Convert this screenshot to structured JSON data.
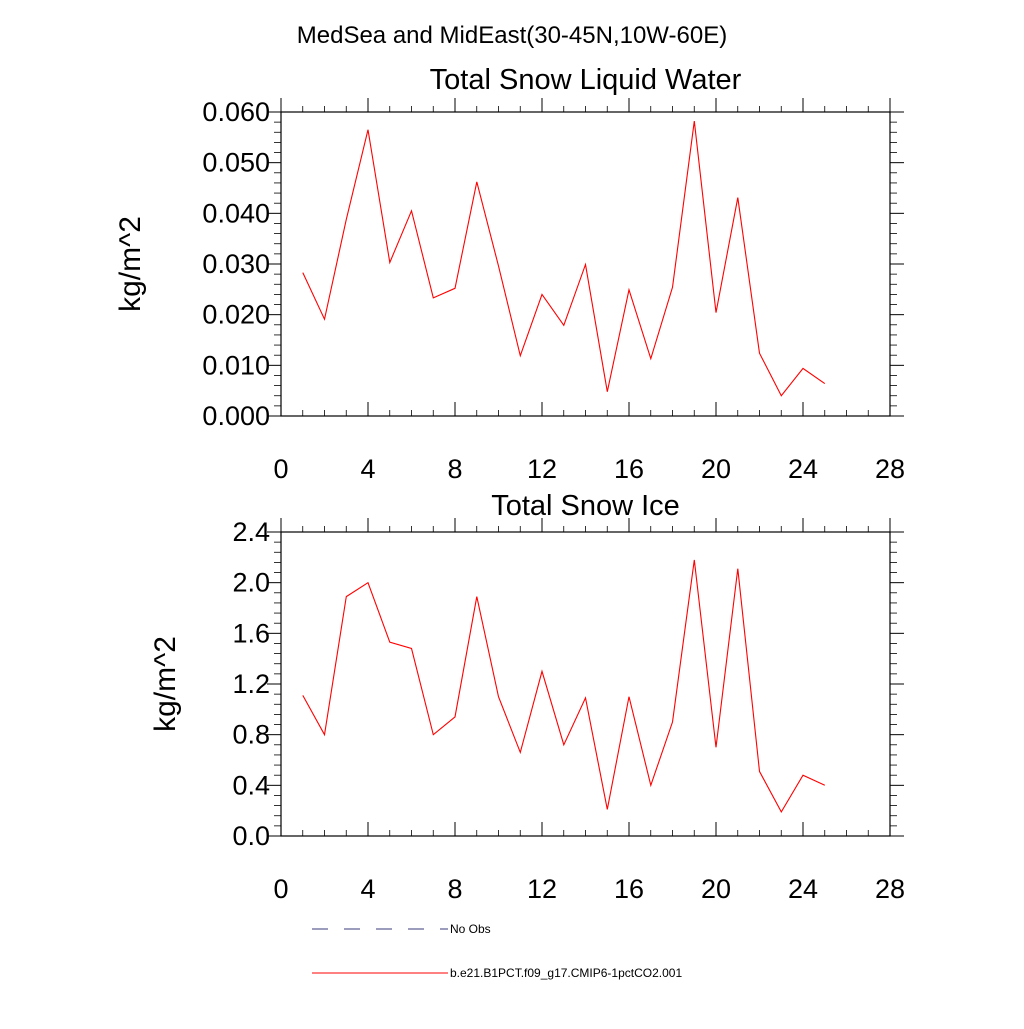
{
  "figure": {
    "suptitle": "MedSea and MidEast(30-45N,10W-60E)"
  },
  "chart_data": [
    {
      "type": "line",
      "title": "Total Snow Liquid Water",
      "xlabel": "",
      "ylabel": "kg/m^2",
      "xlim": [
        0,
        28
      ],
      "ylim": [
        0.0,
        0.06
      ],
      "xticks": [
        0,
        4,
        8,
        12,
        16,
        20,
        24,
        28
      ],
      "xtick_labels": [
        "0",
        "4",
        "8",
        "12",
        "16",
        "20",
        "24",
        "28"
      ],
      "yticks": [
        0.0,
        0.01,
        0.02,
        0.03,
        0.04,
        0.05,
        0.06
      ],
      "ytick_labels": [
        "0.000",
        "0.010",
        "0.020",
        "0.030",
        "0.040",
        "0.050",
        "0.060"
      ],
      "grid": false,
      "series": [
        {
          "name": "b.e21.B1PCT.f09_g17.CMIP6-1pctCO2.001",
          "color": "#ff0000",
          "x": [
            1,
            2,
            3,
            4,
            5,
            6,
            7,
            8,
            9,
            10,
            11,
            12,
            13,
            14,
            15,
            16,
            17,
            18,
            19,
            20,
            21,
            22,
            23,
            24,
            25
          ],
          "y": [
            0.0283,
            0.0191,
            0.0388,
            0.0565,
            0.0303,
            0.0405,
            0.0233,
            0.0252,
            0.0462,
            0.0296,
            0.0119,
            0.024,
            0.0179,
            0.0299,
            0.0048,
            0.0249,
            0.0113,
            0.0254,
            0.0582,
            0.0204,
            0.0431,
            0.0124,
            0.004,
            0.0094,
            0.0064
          ]
        }
      ]
    },
    {
      "type": "line",
      "title": "Total Snow Ice",
      "xlabel": "",
      "ylabel": "kg/m^2",
      "xlim": [
        0,
        28
      ],
      "ylim": [
        0.0,
        2.4
      ],
      "xticks": [
        0,
        4,
        8,
        12,
        16,
        20,
        24,
        28
      ],
      "xtick_labels": [
        "0",
        "4",
        "8",
        "12",
        "16",
        "20",
        "24",
        "28"
      ],
      "yticks": [
        0.0,
        0.4,
        0.8,
        1.2,
        1.6,
        2.0,
        2.4
      ],
      "ytick_labels": [
        "0.0",
        "0.4",
        "0.8",
        "1.2",
        "1.6",
        "2.0",
        "2.4"
      ],
      "grid": false,
      "series": [
        {
          "name": "b.e21.B1PCT.f09_g17.CMIP6-1pctCO2.001",
          "color": "#ff0000",
          "x": [
            1,
            2,
            3,
            4,
            5,
            6,
            7,
            8,
            9,
            10,
            11,
            12,
            13,
            14,
            15,
            16,
            17,
            18,
            19,
            20,
            21,
            22,
            23,
            24,
            25
          ],
          "y": [
            1.11,
            0.8,
            1.89,
            2.0,
            1.53,
            1.48,
            0.8,
            0.94,
            1.89,
            1.1,
            0.66,
            1.3,
            0.72,
            1.09,
            0.21,
            1.1,
            0.4,
            0.9,
            2.18,
            0.7,
            2.11,
            0.51,
            0.19,
            0.48,
            0.4
          ]
        }
      ]
    }
  ],
  "legend": {
    "placement": "bottom",
    "entries": [
      {
        "label": "No Obs",
        "color": "#3a3a7a",
        "style": "dashed"
      },
      {
        "label": "b.e21.B1PCT.f09_g17.CMIP6-1pctCO2.001",
        "color": "#ff0000",
        "style": "solid"
      }
    ]
  }
}
